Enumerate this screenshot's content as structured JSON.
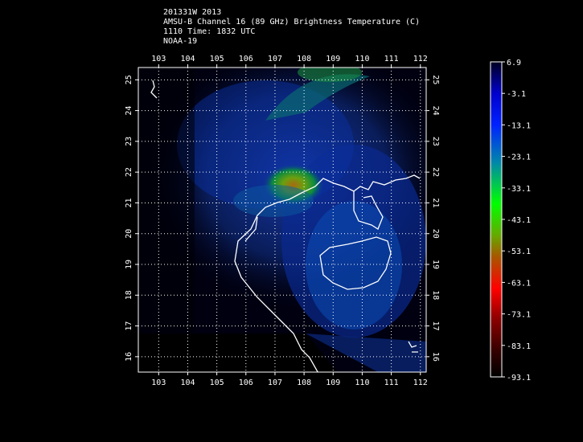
{
  "title": {
    "line1": "201331W 2013",
    "line2": "AMSU-B Channel 16 (89 GHz) Brightness Temperature (C)",
    "line3": "1110 Time: 1832 UTC",
    "line4": "NOAA-19"
  },
  "map": {
    "lon_range": [
      102.3,
      112.2
    ],
    "lat_range": [
      15.5,
      25.4
    ],
    "lon_ticks": [
      "103",
      "104",
      "105",
      "106",
      "107",
      "108",
      "109",
      "110",
      "111",
      "112"
    ],
    "lat_ticks": [
      "16",
      "17",
      "18",
      "19",
      "20",
      "21",
      "22",
      "23",
      "24",
      "25"
    ],
    "grid": true,
    "background": "#000000",
    "coastline_color": "#ffffff"
  },
  "colorbar": {
    "labels": [
      "6.9",
      "-3.1",
      "-13.1",
      "-23.1",
      "-33.1",
      "-43.1",
      "-53.1",
      "-63.1",
      "-73.1",
      "-83.1",
      "-93.1"
    ],
    "colors": [
      "#000010",
      "#0000ff",
      "#0055cc",
      "#00aa66",
      "#00ff00",
      "#66aa00",
      "#aa5500",
      "#ff0000",
      "#aa0000",
      "#000000"
    ]
  }
}
